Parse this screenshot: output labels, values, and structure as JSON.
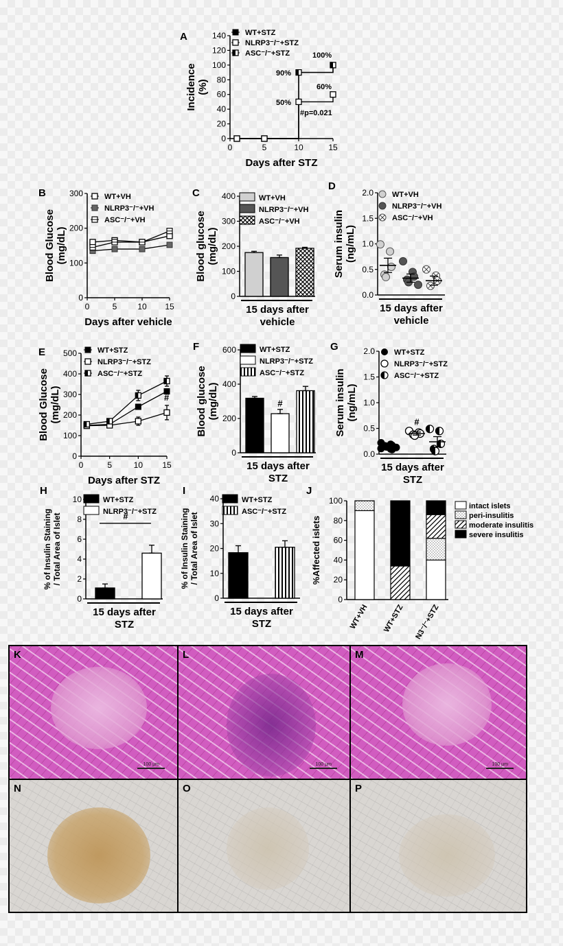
{
  "colors": {
    "black": "#000000",
    "dark_gray": "#555555",
    "light_gray": "#cccccc",
    "white": "#ffffff"
  },
  "panels": {
    "A": {
      "label": "A",
      "chart_data": {
        "type": "line",
        "xlabel": "Days after STZ",
        "ylabel_lines": [
          "Incidence",
          "(%)"
        ],
        "xlim": [
          0,
          15
        ],
        "ylim": [
          0,
          140
        ],
        "xticks": [
          "0",
          "5",
          "10",
          "15"
        ],
        "yticks": [
          "0",
          "20",
          "40",
          "60",
          "80",
          "100",
          "120",
          "140"
        ],
        "legend": [
          {
            "text": "WT+STZ",
            "marker": "filled-square"
          },
          {
            "text": "NLRP3⁻/⁻+STZ",
            "marker": "open-square"
          },
          {
            "text": "ASC⁻/⁻+STZ",
            "marker": "half-square"
          }
        ],
        "series": [
          {
            "name": "WT+STZ",
            "x": [
              1,
              5,
              10,
              10,
              15,
              15
            ],
            "y": [
              0,
              0,
              0,
              90,
              90,
              100
            ]
          },
          {
            "name": "NLRP3⁻/⁻+STZ",
            "x": [
              1,
              5,
              10,
              10,
              15,
              15
            ],
            "y": [
              0,
              0,
              0,
              50,
              50,
              60
            ]
          },
          {
            "name": "ASC⁻/⁻+STZ",
            "x": [
              1,
              5,
              10,
              10,
              15,
              15
            ],
            "y": [
              0,
              0,
              0,
              90,
              90,
              100
            ]
          }
        ],
        "annotations": [
          "100%",
          "90%",
          "60%",
          "50%",
          "#p=0.021"
        ]
      }
    },
    "B": {
      "label": "B",
      "chart_data": {
        "type": "line",
        "xlabel": "Days after vehicle",
        "ylabel_lines": [
          "Blood Glucose",
          "(mg/dL)"
        ],
        "xlim": [
          0,
          15
        ],
        "ylim": [
          0,
          300
        ],
        "xticks": [
          "0",
          "5",
          "10",
          "15"
        ],
        "yticks": [
          "0",
          "100",
          "200",
          "300"
        ],
        "legend": [
          {
            "text": "WT+VH",
            "marker": "open-square"
          },
          {
            "text": "NLRP3⁻/⁻+VH",
            "marker": "gray-square"
          },
          {
            "text": "ASC⁻/⁻+VH",
            "marker": "crossed-square"
          }
        ],
        "x": [
          1,
          5,
          10,
          15
        ],
        "series": [
          {
            "name": "WT+VH",
            "values": [
              160,
              165,
              160,
              178
            ]
          },
          {
            "name": "NLRP3⁻/⁻+VH",
            "values": [
              135,
              140,
              140,
              152
            ]
          },
          {
            "name": "ASC⁻/⁻+VH",
            "values": [
              145,
              160,
              160,
              192
            ]
          }
        ]
      }
    },
    "C": {
      "label": "C",
      "chart_data": {
        "type": "bar",
        "xlabel_lines": [
          "15 days after",
          "vehicle"
        ],
        "ylabel_lines": [
          "Blood glucose",
          "(mg/dL)"
        ],
        "ylim": [
          0,
          400
        ],
        "yticks": [
          "0",
          "100",
          "200",
          "300",
          "400"
        ],
        "legend": [
          {
            "text": "WT+VH",
            "fill": "light"
          },
          {
            "text": "NLRP3⁻/⁻+VH",
            "fill": "dark"
          },
          {
            "text": "ASC⁻/⁻+VH",
            "fill": "checker"
          }
        ],
        "categories": [
          "WT+VH",
          "NLRP3⁻/⁻+VH",
          "ASC⁻/⁻+VH"
        ],
        "values": [
          175,
          155,
          192
        ],
        "errors": [
          5,
          10,
          4
        ]
      }
    },
    "D": {
      "label": "D",
      "chart_data": {
        "type": "scatter",
        "xlabel_lines": [
          "15 days after",
          "vehicle"
        ],
        "ylabel_lines": [
          "Serum insulin",
          "(ng/mL)"
        ],
        "ylim": [
          0,
          2.0
        ],
        "yticks": [
          "0.0",
          "0.5",
          "1.0",
          "1.5",
          "2.0"
        ],
        "legend": [
          {
            "text": "WT+VH",
            "marker": "light-circle"
          },
          {
            "text": "NLRP3⁻/⁻+VH",
            "marker": "gray-circle"
          },
          {
            "text": "ASC⁻/⁻+VH",
            "marker": "crossed-circle"
          }
        ],
        "groups": [
          {
            "name": "WT+VH",
            "points": [
              0.99,
              0.85,
              0.55,
              0.4,
              0.35
            ],
            "mean": 0.58,
            "sem": 0.14
          },
          {
            "name": "NLRP3⁻/⁻+VH",
            "points": [
              0.66,
              0.45,
              0.36,
              0.3,
              0.25,
              0.2
            ],
            "mean": 0.33,
            "sem": 0.08
          },
          {
            "name": "ASC⁻/⁻+VH",
            "points": [
              0.5,
              0.38,
              0.28,
              0.18
            ],
            "mean": 0.28,
            "sem": 0.09
          }
        ]
      }
    },
    "E": {
      "label": "E",
      "chart_data": {
        "type": "line",
        "xlabel": "Days after STZ",
        "ylabel_lines": [
          "Blood Glucose",
          "(mg/dL)"
        ],
        "xlim": [
          0,
          15
        ],
        "ylim": [
          0,
          500
        ],
        "xticks": [
          "0",
          "5",
          "10",
          "15"
        ],
        "yticks": [
          "0",
          "100",
          "200",
          "300",
          "400",
          "500"
        ],
        "legend": [
          {
            "text": "WT+STZ",
            "marker": "filled-square"
          },
          {
            "text": "NLRP3⁻/⁻+STZ",
            "marker": "open-square"
          },
          {
            "text": "ASC⁻/⁻+STZ",
            "marker": "half-square"
          }
        ],
        "x": [
          1,
          5,
          10,
          15
        ],
        "series": [
          {
            "name": "WT+STZ",
            "values": [
              150,
              155,
              240,
              315
            ],
            "errors": [
              8,
              8,
              10,
              10
            ]
          },
          {
            "name": "NLRP3⁻/⁻+STZ",
            "values": [
              148,
              150,
              170,
              212
            ],
            "errors": [
              10,
              10,
              20,
              35
            ]
          },
          {
            "name": "ASC⁻/⁻+STZ",
            "values": [
              155,
              170,
              295,
              365
            ],
            "errors": [
              10,
              12,
              25,
              25
            ]
          }
        ],
        "annotations": [
          "#"
        ]
      }
    },
    "F": {
      "label": "F",
      "chart_data": {
        "type": "bar",
        "xlabel_lines": [
          "15 days after",
          "STZ"
        ],
        "ylabel_lines": [
          "Blood glucose",
          "(mg/dL)"
        ],
        "ylim": [
          0,
          600
        ],
        "yticks": [
          "0",
          "200",
          "400",
          "600"
        ],
        "legend": [
          {
            "text": "WT+STZ",
            "fill": "black"
          },
          {
            "text": "NLRP3⁻/⁻+STZ",
            "fill": "white"
          },
          {
            "text": "ASC⁻/⁻+STZ",
            "fill": "vstripe"
          }
        ],
        "categories": [
          "WT+STZ",
          "NLRP3⁻/⁻+STZ",
          "ASC⁻/⁻+STZ"
        ],
        "values": [
          318,
          228,
          362
        ],
        "errors": [
          10,
          25,
          25
        ],
        "annotations": [
          "#"
        ]
      }
    },
    "G": {
      "label": "G",
      "chart_data": {
        "type": "scatter",
        "xlabel_lines": [
          "15 days after",
          "STZ"
        ],
        "ylabel_lines": [
          "Serum insulin",
          "(ng/mL)"
        ],
        "ylim": [
          0,
          2.0
        ],
        "yticks": [
          "0.0",
          "0.5",
          "1.0",
          "1.5",
          "2.0"
        ],
        "legend": [
          {
            "text": "WT+STZ",
            "marker": "filled-circle"
          },
          {
            "text": "NLRP3⁻/⁻+STZ",
            "marker": "open-circle"
          },
          {
            "text": "ASC⁻/⁻+STZ",
            "marker": "half-circle"
          }
        ],
        "groups": [
          {
            "name": "WT+STZ",
            "points": [
              0.22,
              0.19,
              0.17,
              0.16,
              0.14,
              0.13,
              0.11,
              0.1,
              0.09
            ],
            "mean": 0.15,
            "sem": 0.02
          },
          {
            "name": "NLRP3⁻/⁻+STZ",
            "points": [
              0.45,
              0.42,
              0.4,
              0.38,
              0.36
            ],
            "mean": 0.4,
            "sem": 0.03
          },
          {
            "name": "ASC⁻/⁻+STZ",
            "points": [
              0.49,
              0.45,
              0.2,
              0.1,
              0.06
            ],
            "mean": 0.24,
            "sem": 0.1
          }
        ],
        "annotations": [
          "#"
        ]
      }
    },
    "H": {
      "label": "H",
      "chart_data": {
        "type": "bar",
        "xlabel_lines": [
          "15 days after",
          "STZ"
        ],
        "ylabel_lines": [
          "% of Insulin Staining",
          "/ Total Area of Islet"
        ],
        "ylim": [
          0,
          10
        ],
        "yticks": [
          "0",
          "2",
          "4",
          "6",
          "8",
          "10"
        ],
        "legend": [
          {
            "text": "WT+STZ",
            "fill": "black"
          },
          {
            "text": "NLRP3⁻/⁻+STZ",
            "fill": "white"
          }
        ],
        "categories": [
          "WT+STZ",
          "NLRP3⁻/⁻+STZ"
        ],
        "values": [
          1.1,
          4.6
        ],
        "errors": [
          0.4,
          0.8
        ],
        "annotations": [
          "#"
        ]
      }
    },
    "I": {
      "label": "I",
      "chart_data": {
        "type": "bar",
        "xlabel_lines": [
          "15 days after",
          "STZ"
        ],
        "ylabel_lines": [
          "% of Insulin Staining",
          "/ Total Area of Islet"
        ],
        "ylim": [
          0,
          40
        ],
        "yticks": [
          "0",
          "10",
          "20",
          "30",
          "40"
        ],
        "legend": [
          {
            "text": "WT+STZ",
            "fill": "black"
          },
          {
            "text": "ASC⁻/⁻+STZ",
            "fill": "vstripe"
          }
        ],
        "categories": [
          "WT+STZ",
          "ASC⁻/⁻+STZ"
        ],
        "values": [
          18.3,
          20.5
        ],
        "errors": [
          2.8,
          2.6
        ]
      }
    },
    "J": {
      "label": "J",
      "chart_data": {
        "type": "bar",
        "stacked": true,
        "ylabel": "%Affected islets",
        "ylim": [
          0,
          100
        ],
        "yticks": [
          "0",
          "20",
          "40",
          "60",
          "80",
          "100"
        ],
        "categories": [
          "WT+VH",
          "WT+STZ",
          "N3⁻/⁻+STZ"
        ],
        "legend": [
          {
            "text": "intact islets",
            "fill": "white"
          },
          {
            "text": "peri-insulitis",
            "fill": "dots"
          },
          {
            "text": "moderate insulitis",
            "fill": "diagonal"
          },
          {
            "text": "severe insulitis",
            "fill": "black"
          }
        ],
        "series": [
          {
            "name": "intact islets",
            "values": [
              90,
              0,
              40
            ]
          },
          {
            "name": "peri-insulitis",
            "values": [
              10,
              0,
              22
            ]
          },
          {
            "name": "moderate insulitis",
            "values": [
              0,
              34,
              24
            ]
          },
          {
            "name": "severe insulitis",
            "values": [
              0,
              66,
              14
            ]
          }
        ]
      }
    }
  },
  "micrographs": [
    {
      "label": "K",
      "stain": "he",
      "islet": "pale",
      "scale": "100 µm"
    },
    {
      "label": "L",
      "stain": "he",
      "islet": "infiltrated",
      "scale": "100 µm"
    },
    {
      "label": "M",
      "stain": "he",
      "islet": "pale",
      "scale": "100 µm"
    },
    {
      "label": "N",
      "stain": "ihc",
      "islet": "brown",
      "scale": ""
    },
    {
      "label": "O",
      "stain": "ihc",
      "islet": "faint",
      "scale": ""
    },
    {
      "label": "P",
      "stain": "ihc",
      "islet": "faint",
      "scale": ""
    }
  ]
}
